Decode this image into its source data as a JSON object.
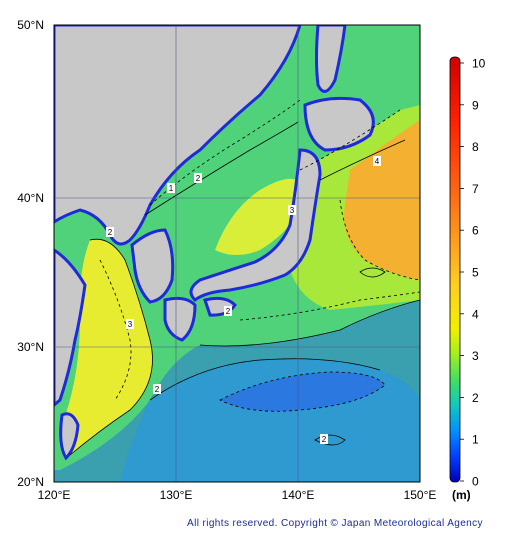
{
  "map": {
    "lat_labels": [
      "50°N",
      "40°N",
      "30°N",
      "20°N"
    ],
    "lon_labels": [
      "120°E",
      "130°E",
      "140°E",
      "150°E"
    ],
    "contour_labels": [
      "1",
      "2",
      "3",
      "4",
      "2",
      "3",
      "2",
      "2",
      "2"
    ],
    "land_color": "#c8c8c8",
    "sea_color": "#5fd36a"
  },
  "colorbar": {
    "ticks": [
      "10",
      "9",
      "8",
      "7",
      "6",
      "5",
      "4",
      "3",
      "2",
      "1",
      "0"
    ],
    "unit": "(m)",
    "colors": [
      "#0000c8",
      "#0050ff",
      "#00a0ff",
      "#20d0a0",
      "#60e040",
      "#c0f020",
      "#ffff00",
      "#ffc020",
      "#ff8010",
      "#ff3000",
      "#d00000"
    ]
  },
  "footer": {
    "copyright": "All rights reserved. Copyright © Japan Meteorological Agency"
  }
}
